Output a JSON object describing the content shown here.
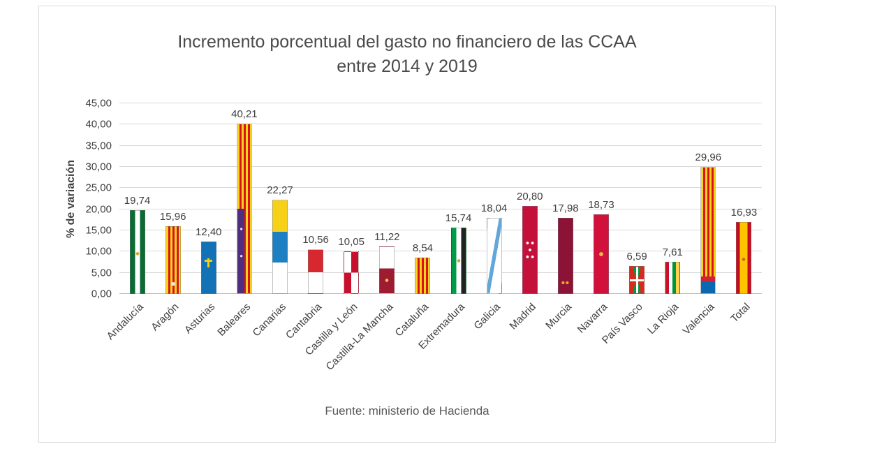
{
  "chart": {
    "title_line1": "Incremento porcentual del gasto no financiero de las CCAA",
    "title_line2": "entre 2014 y 2019",
    "ylabel": "% de variación",
    "source": "Fuente: ministerio de Hacienda"
  },
  "chart_data": {
    "type": "bar",
    "title": "Incremento porcentual del gasto no financiero de las CCAA entre 2014 y 2019",
    "xlabel": "",
    "ylabel": "% de variación",
    "ylim": [
      0,
      45
    ],
    "ytick_step": 5,
    "ytick_labels": [
      "0,00",
      "5,00",
      "10,00",
      "15,00",
      "20,00",
      "25,00",
      "30,00",
      "35,00",
      "40,00",
      "45,00"
    ],
    "grid": true,
    "legend": "none",
    "bar_style": "each bar filled with the regional flag of the autonomous community",
    "source": "Fuente: ministerio de Hacienda",
    "categories": [
      "Andalucía",
      "Aragón",
      "Asturias",
      "Baleares",
      "Canarias",
      "Cantabria",
      "Castilla y León",
      "Castilla-La Mancha",
      "Cataluña",
      "Extremadura",
      "Galicia",
      "Madrid",
      "Murcia",
      "Navarra",
      "País Vasco",
      "La Rioja",
      "Valencia",
      "Total"
    ],
    "values": [
      19.74,
      15.96,
      12.4,
      40.21,
      22.27,
      10.56,
      10.05,
      11.22,
      8.54,
      15.74,
      18.04,
      20.8,
      17.98,
      18.73,
      6.59,
      7.61,
      29.96,
      16.93
    ],
    "value_labels": [
      "19,74",
      "15,96",
      "12,40",
      "40,21",
      "22,27",
      "10,56",
      "10,05",
      "11,22",
      "8,54",
      "15,74",
      "18,04",
      "20,80",
      "17,98",
      "18,73",
      "6,59",
      "7,61",
      "29,96",
      "16,93"
    ],
    "flags": [
      "andalucia",
      "aragon",
      "asturias",
      "baleares",
      "canarias",
      "cantabria",
      "castilla-leon",
      "castilla-la-mancha",
      "cataluna",
      "extremadura",
      "galicia",
      "madrid",
      "murcia",
      "navarra",
      "pais-vasco",
      "la-rioja",
      "valencia",
      "espana"
    ]
  }
}
